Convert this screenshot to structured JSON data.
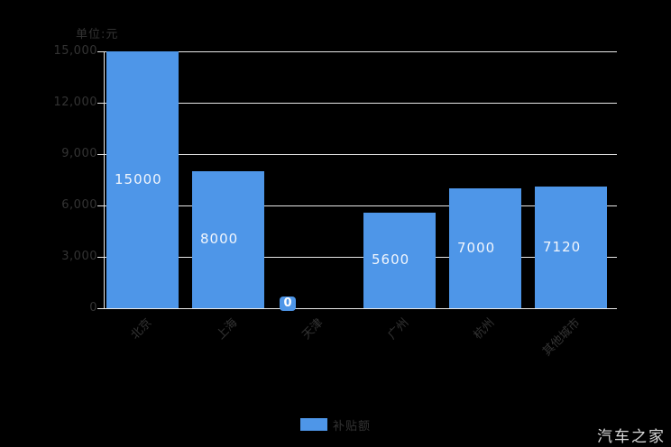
{
  "chart_data": {
    "type": "bar",
    "title": "单位:元",
    "categories": [
      "北京",
      "上海",
      "天津",
      "广州",
      "杭州",
      "其他城市"
    ],
    "values": [
      15000,
      8000,
      0,
      5600,
      7000,
      7120
    ],
    "value_labels": [
      "15000",
      "8000",
      "0",
      "5600",
      "7000",
      "7120"
    ],
    "xlabel": "",
    "ylabel": "单位:元",
    "ylim": [
      0,
      15000
    ],
    "ytick_step": 3000,
    "ytick_labels": [
      "0",
      "3,000",
      "6,000",
      "9,000",
      "12,000",
      "15,000"
    ],
    "grid": true,
    "legend": {
      "position": "bottom-center",
      "entries": [
        {
          "label": "补贴额",
          "color": "#4e96e8"
        }
      ]
    }
  },
  "watermark": {
    "text": "汽车之家"
  },
  "colors": {
    "background": "#000000",
    "bar": "#4e96e8",
    "gridline": "#e8e8e8",
    "axis_text": "#333333",
    "value_text": "#f2f6fc",
    "watermark_text": "#d9d9d9"
  }
}
